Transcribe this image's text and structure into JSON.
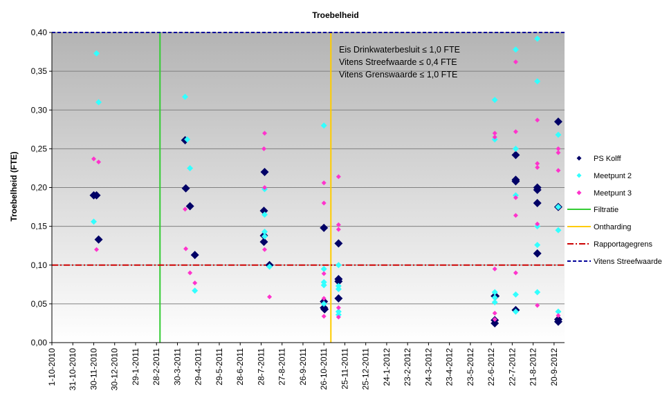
{
  "chart_data": {
    "type": "scatter",
    "title": "Troebelheid",
    "ylabel": "Troebelheid (FTE)",
    "xlabel": "",
    "ylim": [
      0,
      0.4
    ],
    "xlim": [
      "2010-10-01",
      "2012-10-05"
    ],
    "yticks": [
      "0,00",
      "0,05",
      "0,10",
      "0,15",
      "0,20",
      "0,25",
      "0,30",
      "0,35",
      "0,40"
    ],
    "xticks": [
      {
        "date": "2010-10-01",
        "label": "1-10-2010"
      },
      {
        "date": "2010-10-31",
        "label": "31-10-2010"
      },
      {
        "date": "2010-11-30",
        "label": "30-11-2010"
      },
      {
        "date": "2010-12-30",
        "label": "30-12-2010"
      },
      {
        "date": "2011-01-29",
        "label": "29-1-2011"
      },
      {
        "date": "2011-02-28",
        "label": "28-2-2011"
      },
      {
        "date": "2011-03-30",
        "label": "30-3-2011"
      },
      {
        "date": "2011-04-29",
        "label": "29-4-2011"
      },
      {
        "date": "2011-05-29",
        "label": "29-5-2011"
      },
      {
        "date": "2011-06-28",
        "label": "28-6-2011"
      },
      {
        "date": "2011-07-28",
        "label": "28-7-2011"
      },
      {
        "date": "2011-08-27",
        "label": "27-8-2011"
      },
      {
        "date": "2011-09-26",
        "label": "26-9-2011"
      },
      {
        "date": "2011-10-26",
        "label": "26-10-2011"
      },
      {
        "date": "2011-11-25",
        "label": "25-11-2011"
      },
      {
        "date": "2011-12-25",
        "label": "25-12-2011"
      },
      {
        "date": "2012-01-24",
        "label": "24-1-2012"
      },
      {
        "date": "2012-02-23",
        "label": "23-2-2012"
      },
      {
        "date": "2012-03-24",
        "label": "24-3-2012"
      },
      {
        "date": "2012-04-23",
        "label": "23-4-2012"
      },
      {
        "date": "2012-05-23",
        "label": "23-5-2012"
      },
      {
        "date": "2012-06-22",
        "label": "22-6-2012"
      },
      {
        "date": "2012-07-22",
        "label": "22-7-2012"
      },
      {
        "date": "2012-08-21",
        "label": "21-8-2012"
      },
      {
        "date": "2012-09-20",
        "label": "20-9-2012"
      }
    ],
    "grid": true,
    "legend_position": "right",
    "annotations": [
      "Eis Drinkwaterbesluit ≤ 1,0 FTE",
      "Vitens Streefwaarde ≤ 0,4 FTE",
      "Vitens Grenswaarde ≤ 1,0 FTE"
    ],
    "series": [
      {
        "name": "PS Kolff",
        "marker": "diamond-large",
        "color": "#000066",
        "points": [
          {
            "x": "2010-11-30",
            "y": 0.19
          },
          {
            "x": "2010-12-04",
            "y": 0.19
          },
          {
            "x": "2010-12-07",
            "y": 0.133
          },
          {
            "x": "2011-04-10",
            "y": 0.261
          },
          {
            "x": "2011-04-11",
            "y": 0.199
          },
          {
            "x": "2011-04-17",
            "y": 0.176
          },
          {
            "x": "2011-04-24",
            "y": 0.113
          },
          {
            "x": "2011-08-02",
            "y": 0.22
          },
          {
            "x": "2011-08-01",
            "y": 0.17
          },
          {
            "x": "2011-08-01",
            "y": 0.138
          },
          {
            "x": "2011-08-01",
            "y": 0.13
          },
          {
            "x": "2011-08-09",
            "y": 0.1
          },
          {
            "x": "2011-10-26",
            "y": 0.148
          },
          {
            "x": "2011-10-26",
            "y": 0.053
          },
          {
            "x": "2011-10-26",
            "y": 0.045
          },
          {
            "x": "2011-10-27",
            "y": 0.043
          },
          {
            "x": "2011-11-16",
            "y": 0.128
          },
          {
            "x": "2011-11-16",
            "y": 0.082
          },
          {
            "x": "2011-11-16",
            "y": 0.079
          },
          {
            "x": "2011-11-16",
            "y": 0.057
          },
          {
            "x": "2012-06-27",
            "y": 0.06
          },
          {
            "x": "2012-06-28",
            "y": 0.06
          },
          {
            "x": "2012-06-27",
            "y": 0.029
          },
          {
            "x": "2012-06-27",
            "y": 0.025
          },
          {
            "x": "2012-07-27",
            "y": 0.242
          },
          {
            "x": "2012-07-27",
            "y": 0.21
          },
          {
            "x": "2012-07-27",
            "y": 0.208
          },
          {
            "x": "2012-07-27",
            "y": 0.042
          },
          {
            "x": "2012-08-27",
            "y": 0.2
          },
          {
            "x": "2012-08-27",
            "y": 0.197
          },
          {
            "x": "2012-08-27",
            "y": 0.18
          },
          {
            "x": "2012-08-27",
            "y": 0.115
          },
          {
            "x": "2012-09-26",
            "y": 0.285
          },
          {
            "x": "2012-09-26",
            "y": 0.175
          },
          {
            "x": "2012-09-26",
            "y": 0.03
          },
          {
            "x": "2012-09-26",
            "y": 0.027
          }
        ]
      },
      {
        "name": "Meetpunt 2",
        "marker": "diamond",
        "color": "#33ffff",
        "points": [
          {
            "x": "2010-12-04",
            "y": 0.373
          },
          {
            "x": "2010-12-07",
            "y": 0.31
          },
          {
            "x": "2010-11-30",
            "y": 0.156
          },
          {
            "x": "2011-04-10",
            "y": 0.317
          },
          {
            "x": "2011-04-13",
            "y": 0.262
          },
          {
            "x": "2011-04-17",
            "y": 0.225
          },
          {
            "x": "2011-04-24",
            "y": 0.067
          },
          {
            "x": "2011-08-02",
            "y": 0.198
          },
          {
            "x": "2011-08-02",
            "y": 0.165
          },
          {
            "x": "2011-08-02",
            "y": 0.143
          },
          {
            "x": "2011-08-02",
            "y": 0.137
          },
          {
            "x": "2011-08-09",
            "y": 0.098
          },
          {
            "x": "2011-10-26",
            "y": 0.28
          },
          {
            "x": "2011-10-26",
            "y": 0.095
          },
          {
            "x": "2011-10-26",
            "y": 0.078
          },
          {
            "x": "2011-10-26",
            "y": 0.074
          },
          {
            "x": "2011-10-26",
            "y": 0.05
          },
          {
            "x": "2011-11-16",
            "y": 0.1
          },
          {
            "x": "2011-11-16",
            "y": 0.073
          },
          {
            "x": "2011-11-16",
            "y": 0.069
          },
          {
            "x": "2011-11-16",
            "y": 0.04
          },
          {
            "x": "2011-11-16",
            "y": 0.036
          },
          {
            "x": "2012-06-27",
            "y": 0.313
          },
          {
            "x": "2012-06-27",
            "y": 0.262
          },
          {
            "x": "2012-06-27",
            "y": 0.065
          },
          {
            "x": "2012-06-27",
            "y": 0.058
          },
          {
            "x": "2012-06-27",
            "y": 0.052
          },
          {
            "x": "2012-07-27",
            "y": 0.378
          },
          {
            "x": "2012-07-27",
            "y": 0.25
          },
          {
            "x": "2012-07-27",
            "y": 0.19
          },
          {
            "x": "2012-07-27",
            "y": 0.062
          },
          {
            "x": "2012-07-27",
            "y": 0.04
          },
          {
            "x": "2012-08-27",
            "y": 0.392
          },
          {
            "x": "2012-08-27",
            "y": 0.337
          },
          {
            "x": "2012-08-27",
            "y": 0.15
          },
          {
            "x": "2012-08-27",
            "y": 0.126
          },
          {
            "x": "2012-08-27",
            "y": 0.065
          },
          {
            "x": "2012-09-26",
            "y": 0.268
          },
          {
            "x": "2012-09-26",
            "y": 0.175
          },
          {
            "x": "2012-09-26",
            "y": 0.145
          },
          {
            "x": "2012-09-26",
            "y": 0.04
          }
        ]
      },
      {
        "name": "Meetpunt 3",
        "marker": "diamond-small",
        "color": "#ff33cc",
        "points": [
          {
            "x": "2010-11-30",
            "y": 0.237
          },
          {
            "x": "2010-12-07",
            "y": 0.233
          },
          {
            "x": "2010-12-04",
            "y": 0.12
          },
          {
            "x": "2011-04-10",
            "y": 0.172
          },
          {
            "x": "2011-04-11",
            "y": 0.121
          },
          {
            "x": "2011-04-17",
            "y": 0.09
          },
          {
            "x": "2011-04-24",
            "y": 0.077
          },
          {
            "x": "2011-08-02",
            "y": 0.27
          },
          {
            "x": "2011-08-01",
            "y": 0.25
          },
          {
            "x": "2011-08-02",
            "y": 0.2
          },
          {
            "x": "2011-08-02",
            "y": 0.12
          },
          {
            "x": "2011-08-09",
            "y": 0.059
          },
          {
            "x": "2011-10-26",
            "y": 0.206
          },
          {
            "x": "2011-10-26",
            "y": 0.18
          },
          {
            "x": "2011-10-26",
            "y": 0.089
          },
          {
            "x": "2011-10-26",
            "y": 0.057
          },
          {
            "x": "2011-10-26",
            "y": 0.034
          },
          {
            "x": "2011-11-16",
            "y": 0.214
          },
          {
            "x": "2011-11-16",
            "y": 0.152
          },
          {
            "x": "2011-11-16",
            "y": 0.146
          },
          {
            "x": "2011-11-16",
            "y": 0.045
          },
          {
            "x": "2011-11-16",
            "y": 0.033
          },
          {
            "x": "2012-06-27",
            "y": 0.27
          },
          {
            "x": "2012-06-27",
            "y": 0.265
          },
          {
            "x": "2012-06-27",
            "y": 0.095
          },
          {
            "x": "2012-06-27",
            "y": 0.038
          },
          {
            "x": "2012-06-27",
            "y": 0.03
          },
          {
            "x": "2012-07-27",
            "y": 0.362
          },
          {
            "x": "2012-07-27",
            "y": 0.272
          },
          {
            "x": "2012-07-27",
            "y": 0.187
          },
          {
            "x": "2012-07-27",
            "y": 0.164
          },
          {
            "x": "2012-07-27",
            "y": 0.09
          },
          {
            "x": "2012-08-27",
            "y": 0.287
          },
          {
            "x": "2012-08-27",
            "y": 0.231
          },
          {
            "x": "2012-08-27",
            "y": 0.226
          },
          {
            "x": "2012-08-27",
            "y": 0.153
          },
          {
            "x": "2012-08-27",
            "y": 0.048
          },
          {
            "x": "2012-09-26",
            "y": 0.25
          },
          {
            "x": "2012-09-26",
            "y": 0.245
          },
          {
            "x": "2012-09-26",
            "y": 0.222
          },
          {
            "x": "2012-09-26",
            "y": 0.035
          }
        ]
      }
    ],
    "reference_lines": [
      {
        "name": "Filtratie",
        "orientation": "vertical",
        "x": "2011-03-05",
        "color": "#33cc33",
        "style": "solid"
      },
      {
        "name": "Ontharding",
        "orientation": "vertical",
        "x": "2011-11-05",
        "color": "#ffcc00",
        "style": "solid"
      },
      {
        "name": "Rapportagegrens",
        "orientation": "horizontal",
        "y": 0.1,
        "color": "#cc0000",
        "style": "dash-dot"
      },
      {
        "name": "Vitens Streefwaarde",
        "orientation": "horizontal",
        "y": 0.4,
        "color": "#000099",
        "style": "dashed"
      }
    ]
  }
}
